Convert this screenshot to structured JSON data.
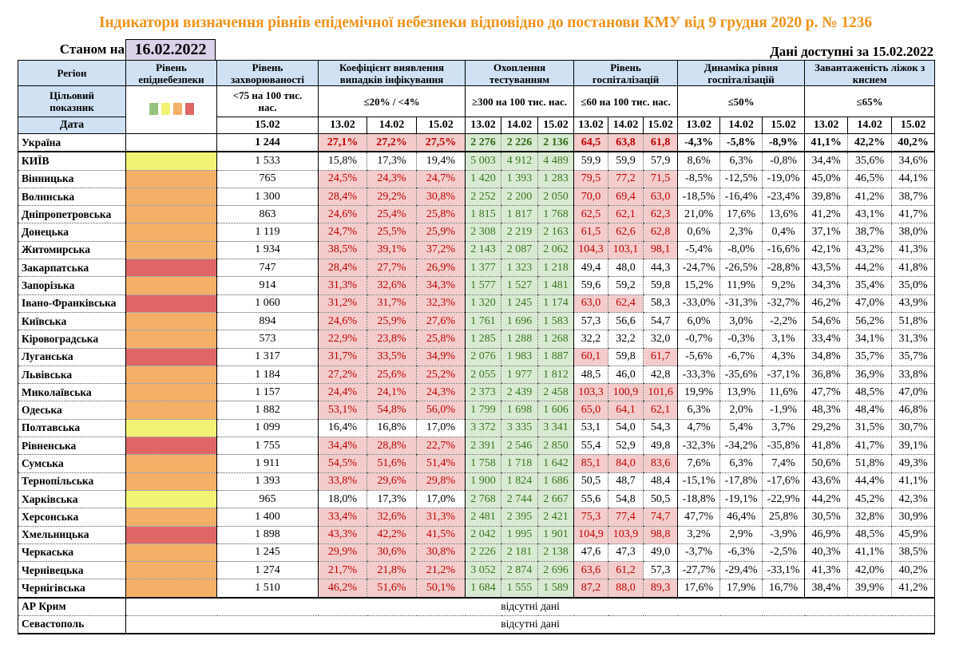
{
  "title": "Індикатори визначення рівнів епідемічної небезпеки відповідно до постанови КМУ від 9 грудня 2020 р. № 1236",
  "as_of_label": "Станом на",
  "as_of_date": "16.02.2022",
  "available_label": "Дані доступні за  15.02.2022",
  "colors": {
    "header_bg": "#cfe1f3",
    "level_green": "#93c47d",
    "level_yellow": "#f2f274",
    "level_orange": "#f4b066",
    "level_red": "#e06666",
    "bad_bg": "#f4cccc",
    "bad_text": "#c00000",
    "good_bg": "#d9ead3",
    "good_text": "#38761d",
    "title": "#f0941e"
  },
  "headers": {
    "region": "Регіон",
    "level": "Рівень епіднебезпеки",
    "incidence": "Рівень захворюваності",
    "detection": "Коефіцієнт виявлення випадків інфікування",
    "testing": "Охоплення тестуванням",
    "hospitalization": "Рівень госпіталізацій",
    "hosp_dynamics": "Динаміка рівня госпіталізацій",
    "oxygen_beds": "Завантаженість ліжок з киснем"
  },
  "target": {
    "label": "Цільовий показник",
    "incidence": "<75 на 100 тис. нас.",
    "detection": "≤20% / <4%",
    "testing": "≥300 на 100 тис. нас.",
    "hospitalization": "≤60 на 100 тис. нас.",
    "hosp_dynamics": "≤50%",
    "oxygen_beds": "≤65%",
    "level_legend": [
      "green",
      "yellow",
      "orange",
      "red"
    ]
  },
  "date_row": {
    "label": "Дата",
    "incidence": "15.02",
    "dates": [
      "13.02",
      "14.02",
      "15.02"
    ]
  },
  "rows": [
    {
      "region": "Україна",
      "level": "",
      "incidence": "1 244",
      "detection": [
        "27,1%",
        "27,2%",
        "27,5%"
      ],
      "detection_bad": [
        1,
        1,
        1
      ],
      "testing": [
        "2 276",
        "2 226",
        "2 136"
      ],
      "hosp": [
        "64,5",
        "63,8",
        "61,8"
      ],
      "hosp_bad": [
        1,
        1,
        1
      ],
      "dyn": [
        "-4,3%",
        "-5,8%",
        "-8,9%"
      ],
      "beds": [
        "41,1%",
        "42,2%",
        "40,2%"
      ]
    },
    {
      "region": "КИЇВ",
      "level": "yellow",
      "incidence": "1 533",
      "detection": [
        "15,8%",
        "17,3%",
        "19,4%"
      ],
      "detection_bad": [
        0,
        0,
        0
      ],
      "testing": [
        "5 003",
        "4 912",
        "4 489"
      ],
      "hosp": [
        "59,9",
        "59,9",
        "57,9"
      ],
      "hosp_bad": [
        0,
        0,
        0
      ],
      "dyn": [
        "8,6%",
        "6,3%",
        "-0,8%"
      ],
      "beds": [
        "34,4%",
        "35,6%",
        "34,6%"
      ]
    },
    {
      "region": "Вінницька",
      "level": "orange",
      "incidence": "765",
      "detection": [
        "24,5%",
        "24,3%",
        "24,7%"
      ],
      "detection_bad": [
        1,
        1,
        1
      ],
      "testing": [
        "1 420",
        "1 393",
        "1 283"
      ],
      "hosp": [
        "79,5",
        "77,2",
        "71,5"
      ],
      "hosp_bad": [
        1,
        1,
        1
      ],
      "dyn": [
        "-8,5%",
        "-12,5%",
        "-19,0%"
      ],
      "beds": [
        "45,0%",
        "46,5%",
        "44,1%"
      ]
    },
    {
      "region": "Волинська",
      "level": "orange",
      "incidence": "1 300",
      "detection": [
        "28,4%",
        "29,2%",
        "30,8%"
      ],
      "detection_bad": [
        1,
        1,
        1
      ],
      "testing": [
        "2 252",
        "2 200",
        "2 050"
      ],
      "hosp": [
        "70,0",
        "69,4",
        "63,0"
      ],
      "hosp_bad": [
        1,
        1,
        1
      ],
      "dyn": [
        "-18,5%",
        "-16,4%",
        "-23,4%"
      ],
      "beds": [
        "39,8%",
        "41,2%",
        "38,7%"
      ]
    },
    {
      "region": "Дніпропетровська",
      "level": "orange",
      "incidence": "863",
      "detection": [
        "24,6%",
        "25,4%",
        "25,8%"
      ],
      "detection_bad": [
        1,
        1,
        1
      ],
      "testing": [
        "1 815",
        "1 817",
        "1 768"
      ],
      "hosp": [
        "62,5",
        "62,1",
        "62,3"
      ],
      "hosp_bad": [
        1,
        1,
        1
      ],
      "dyn": [
        "21,0%",
        "17,6%",
        "13,6%"
      ],
      "beds": [
        "41,2%",
        "43,1%",
        "41,7%"
      ]
    },
    {
      "region": "Донецька",
      "level": "orange",
      "incidence": "1 119",
      "detection": [
        "24,7%",
        "25,5%",
        "25,9%"
      ],
      "detection_bad": [
        1,
        1,
        1
      ],
      "testing": [
        "2 308",
        "2 219",
        "2 163"
      ],
      "hosp": [
        "61,5",
        "62,6",
        "62,8"
      ],
      "hosp_bad": [
        1,
        1,
        1
      ],
      "dyn": [
        "0,6%",
        "2,3%",
        "0,4%"
      ],
      "beds": [
        "37,1%",
        "38,7%",
        "38,0%"
      ]
    },
    {
      "region": "Житомирська",
      "level": "orange",
      "incidence": "1 934",
      "detection": [
        "38,5%",
        "39,1%",
        "37,2%"
      ],
      "detection_bad": [
        1,
        1,
        1
      ],
      "testing": [
        "2 143",
        "2 087",
        "2 062"
      ],
      "hosp": [
        "104,3",
        "103,1",
        "98,1"
      ],
      "hosp_bad": [
        1,
        1,
        1
      ],
      "dyn": [
        "-5,4%",
        "-8,0%",
        "-16,6%"
      ],
      "beds": [
        "42,1%",
        "43,2%",
        "41,3%"
      ]
    },
    {
      "region": "Закарпатська",
      "level": "red",
      "incidence": "747",
      "detection": [
        "28,4%",
        "27,7%",
        "26,9%"
      ],
      "detection_bad": [
        1,
        1,
        1
      ],
      "testing": [
        "1 377",
        "1 323",
        "1 218"
      ],
      "hosp": [
        "49,4",
        "48,0",
        "44,3"
      ],
      "hosp_bad": [
        0,
        0,
        0
      ],
      "dyn": [
        "-24,7%",
        "-26,5%",
        "-28,8%"
      ],
      "beds": [
        "43,5%",
        "44,2%",
        "41,8%"
      ]
    },
    {
      "region": "Запорізька",
      "level": "orange",
      "incidence": "914",
      "detection": [
        "31,3%",
        "32,6%",
        "34,3%"
      ],
      "detection_bad": [
        1,
        1,
        1
      ],
      "testing": [
        "1 577",
        "1 527",
        "1 481"
      ],
      "hosp": [
        "59,6",
        "59,2",
        "59,8"
      ],
      "hosp_bad": [
        0,
        0,
        0
      ],
      "dyn": [
        "15,2%",
        "11,9%",
        "9,2%"
      ],
      "beds": [
        "34,3%",
        "35,4%",
        "35,0%"
      ]
    },
    {
      "region": "Івано-Франківська",
      "level": "red",
      "incidence": "1 060",
      "detection": [
        "31,2%",
        "31,7%",
        "32,3%"
      ],
      "detection_bad": [
        1,
        1,
        1
      ],
      "testing": [
        "1 320",
        "1 245",
        "1 174"
      ],
      "hosp": [
        "63,0",
        "62,4",
        "58,3"
      ],
      "hosp_bad": [
        1,
        1,
        0
      ],
      "dyn": [
        "-33,0%",
        "-31,3%",
        "-32,7%"
      ],
      "beds": [
        "46,2%",
        "47,0%",
        "43,9%"
      ]
    },
    {
      "region": "Київська",
      "level": "orange",
      "incidence": "894",
      "detection": [
        "24,6%",
        "25,9%",
        "27,6%"
      ],
      "detection_bad": [
        1,
        1,
        1
      ],
      "testing": [
        "1 761",
        "1 696",
        "1 583"
      ],
      "hosp": [
        "57,3",
        "56,6",
        "54,7"
      ],
      "hosp_bad": [
        0,
        0,
        0
      ],
      "dyn": [
        "6,0%",
        "3,0%",
        "-2,2%"
      ],
      "beds": [
        "54,6%",
        "56,2%",
        "51,8%"
      ]
    },
    {
      "region": "Кіровоградська",
      "level": "orange",
      "incidence": "573",
      "detection": [
        "22,9%",
        "23,8%",
        "25,8%"
      ],
      "detection_bad": [
        1,
        1,
        1
      ],
      "testing": [
        "1 285",
        "1 288",
        "1 268"
      ],
      "hosp": [
        "32,2",
        "32,2",
        "32,0"
      ],
      "hosp_bad": [
        0,
        0,
        0
      ],
      "dyn": [
        "-0,7%",
        "-0,3%",
        "3,1%"
      ],
      "beds": [
        "33,4%",
        "34,1%",
        "31,3%"
      ]
    },
    {
      "region": "Луганська",
      "level": "red",
      "incidence": "1 317",
      "detection": [
        "31,7%",
        "33,5%",
        "34,9%"
      ],
      "detection_bad": [
        1,
        1,
        1
      ],
      "testing": [
        "2 076",
        "1 983",
        "1 887"
      ],
      "hosp": [
        "60,1",
        "59,8",
        "61,7"
      ],
      "hosp_bad": [
        1,
        0,
        1
      ],
      "dyn": [
        "-5,6%",
        "-6,7%",
        "4,3%"
      ],
      "beds": [
        "34,8%",
        "35,7%",
        "35,7%"
      ]
    },
    {
      "region": "Львівська",
      "level": "orange",
      "incidence": "1 184",
      "detection": [
        "27,2%",
        "25,6%",
        "25,2%"
      ],
      "detection_bad": [
        1,
        1,
        1
      ],
      "testing": [
        "2 055",
        "1 977",
        "1 812"
      ],
      "hosp": [
        "48,5",
        "46,0",
        "42,8"
      ],
      "hosp_bad": [
        0,
        0,
        0
      ],
      "dyn": [
        "-33,3%",
        "-35,6%",
        "-37,1%"
      ],
      "beds": [
        "36,8%",
        "36,9%",
        "33,8%"
      ]
    },
    {
      "region": "Миколаївська",
      "level": "orange",
      "incidence": "1 157",
      "detection": [
        "24,4%",
        "24,1%",
        "24,3%"
      ],
      "detection_bad": [
        1,
        1,
        1
      ],
      "testing": [
        "2 373",
        "2 439",
        "2 458"
      ],
      "hosp": [
        "103,3",
        "100,9",
        "101,6"
      ],
      "hosp_bad": [
        1,
        1,
        1
      ],
      "dyn": [
        "19,9%",
        "13,9%",
        "11,6%"
      ],
      "beds": [
        "47,7%",
        "48,5%",
        "47,0%"
      ]
    },
    {
      "region": "Одеська",
      "level": "orange",
      "incidence": "1 882",
      "detection": [
        "53,1%",
        "54,8%",
        "56,0%"
      ],
      "detection_bad": [
        1,
        1,
        1
      ],
      "testing": [
        "1 799",
        "1 698",
        "1 606"
      ],
      "hosp": [
        "65,0",
        "64,1",
        "62,1"
      ],
      "hosp_bad": [
        1,
        1,
        1
      ],
      "dyn": [
        "6,3%",
        "2,0%",
        "-1,9%"
      ],
      "beds": [
        "48,3%",
        "48,4%",
        "46,8%"
      ]
    },
    {
      "region": "Полтавська",
      "level": "yellow",
      "incidence": "1 099",
      "detection": [
        "16,4%",
        "16,8%",
        "17,0%"
      ],
      "detection_bad": [
        0,
        0,
        0
      ],
      "testing": [
        "3 372",
        "3 335",
        "3 341"
      ],
      "hosp": [
        "53,1",
        "54,0",
        "54,3"
      ],
      "hosp_bad": [
        0,
        0,
        0
      ],
      "dyn": [
        "4,7%",
        "5,4%",
        "3,7%"
      ],
      "beds": [
        "29,2%",
        "31,5%",
        "30,7%"
      ]
    },
    {
      "region": "Рівненська",
      "level": "red",
      "incidence": "1 755",
      "detection": [
        "34,4%",
        "28,8%",
        "22,7%"
      ],
      "detection_bad": [
        1,
        1,
        1
      ],
      "testing": [
        "2 391",
        "2 546",
        "2 850"
      ],
      "hosp": [
        "55,4",
        "52,9",
        "49,8"
      ],
      "hosp_bad": [
        0,
        0,
        0
      ],
      "dyn": [
        "-32,3%",
        "-34,2%",
        "-35,8%"
      ],
      "beds": [
        "41,8%",
        "41,7%",
        "39,1%"
      ]
    },
    {
      "region": "Сумська",
      "level": "orange",
      "incidence": "1 911",
      "detection": [
        "54,5%",
        "51,6%",
        "51,4%"
      ],
      "detection_bad": [
        1,
        1,
        1
      ],
      "testing": [
        "1 758",
        "1 718",
        "1 642"
      ],
      "hosp": [
        "85,1",
        "84,0",
        "83,6"
      ],
      "hosp_bad": [
        1,
        1,
        1
      ],
      "dyn": [
        "7,6%",
        "6,3%",
        "7,4%"
      ],
      "beds": [
        "50,6%",
        "51,8%",
        "49,3%"
      ]
    },
    {
      "region": "Тернопільська",
      "level": "orange",
      "incidence": "1 393",
      "detection": [
        "33,8%",
        "29,6%",
        "29,8%"
      ],
      "detection_bad": [
        1,
        1,
        1
      ],
      "testing": [
        "1 900",
        "1 824",
        "1 686"
      ],
      "hosp": [
        "50,5",
        "48,7",
        "48,4"
      ],
      "hosp_bad": [
        0,
        0,
        0
      ],
      "dyn": [
        "-15,1%",
        "-17,8%",
        "-17,6%"
      ],
      "beds": [
        "43,6%",
        "44,4%",
        "41,1%"
      ]
    },
    {
      "region": "Харківська",
      "level": "yellow",
      "incidence": "965",
      "detection": [
        "18,0%",
        "17,3%",
        "17,0%"
      ],
      "detection_bad": [
        0,
        0,
        0
      ],
      "testing": [
        "2 768",
        "2 744",
        "2 667"
      ],
      "hosp": [
        "55,6",
        "54,8",
        "50,5"
      ],
      "hosp_bad": [
        0,
        0,
        0
      ],
      "dyn": [
        "-18,8%",
        "-19,1%",
        "-22,9%"
      ],
      "beds": [
        "44,2%",
        "45,2%",
        "42,3%"
      ]
    },
    {
      "region": "Херсонська",
      "level": "orange",
      "incidence": "1 400",
      "detection": [
        "33,4%",
        "32,6%",
        "31,3%"
      ],
      "detection_bad": [
        1,
        1,
        1
      ],
      "testing": [
        "2 481",
        "2 395",
        "2 421"
      ],
      "hosp": [
        "75,3",
        "77,4",
        "74,7"
      ],
      "hosp_bad": [
        1,
        1,
        1
      ],
      "dyn": [
        "47,7%",
        "46,4%",
        "25,8%"
      ],
      "beds": [
        "30,5%",
        "32,8%",
        "30,9%"
      ]
    },
    {
      "region": "Хмельницька",
      "level": "red",
      "incidence": "1 898",
      "detection": [
        "43,3%",
        "42,2%",
        "41,5%"
      ],
      "detection_bad": [
        1,
        1,
        1
      ],
      "testing": [
        "2 042",
        "1 995",
        "1 901"
      ],
      "hosp": [
        "104,9",
        "103,9",
        "98,8"
      ],
      "hosp_bad": [
        1,
        1,
        1
      ],
      "dyn": [
        "3,2%",
        "2,9%",
        "-3,9%"
      ],
      "beds": [
        "46,9%",
        "48,5%",
        "45,9%"
      ]
    },
    {
      "region": "Черкаська",
      "level": "orange",
      "incidence": "1 245",
      "detection": [
        "29,9%",
        "30,6%",
        "30,8%"
      ],
      "detection_bad": [
        1,
        1,
        1
      ],
      "testing": [
        "2 226",
        "2 181",
        "2 138"
      ],
      "hosp": [
        "47,6",
        "47,3",
        "49,0"
      ],
      "hosp_bad": [
        0,
        0,
        0
      ],
      "dyn": [
        "-3,7%",
        "-6,3%",
        "-2,5%"
      ],
      "beds": [
        "40,3%",
        "41,1%",
        "38,5%"
      ]
    },
    {
      "region": "Чернівецька",
      "level": "orange",
      "incidence": "1 274",
      "detection": [
        "21,7%",
        "21,8%",
        "21,2%"
      ],
      "detection_bad": [
        1,
        1,
        1
      ],
      "testing": [
        "3 052",
        "2 874",
        "2 696"
      ],
      "hosp": [
        "63,6",
        "61,2",
        "57,3"
      ],
      "hosp_bad": [
        1,
        1,
        0
      ],
      "dyn": [
        "-27,7%",
        "-29,4%",
        "-33,1%"
      ],
      "beds": [
        "41,3%",
        "42,0%",
        "40,2%"
      ]
    },
    {
      "region": "Чернігівська",
      "level": "orange",
      "incidence": "1 510",
      "detection": [
        "46,2%",
        "51,6%",
        "50,1%"
      ],
      "detection_bad": [
        1,
        1,
        1
      ],
      "testing": [
        "1 684",
        "1 555",
        "1 589"
      ],
      "hosp": [
        "87,2",
        "88,0",
        "89,3"
      ],
      "hosp_bad": [
        1,
        1,
        1
      ],
      "dyn": [
        "17,6%",
        "17,9%",
        "16,7%"
      ],
      "beds": [
        "38,4%",
        "39,9%",
        "41,2%"
      ]
    }
  ],
  "no_data_rows": [
    {
      "region": "АР Крим",
      "message": "відсутні дані"
    },
    {
      "region": "Севастополь",
      "message": "відсутні дані"
    }
  ]
}
